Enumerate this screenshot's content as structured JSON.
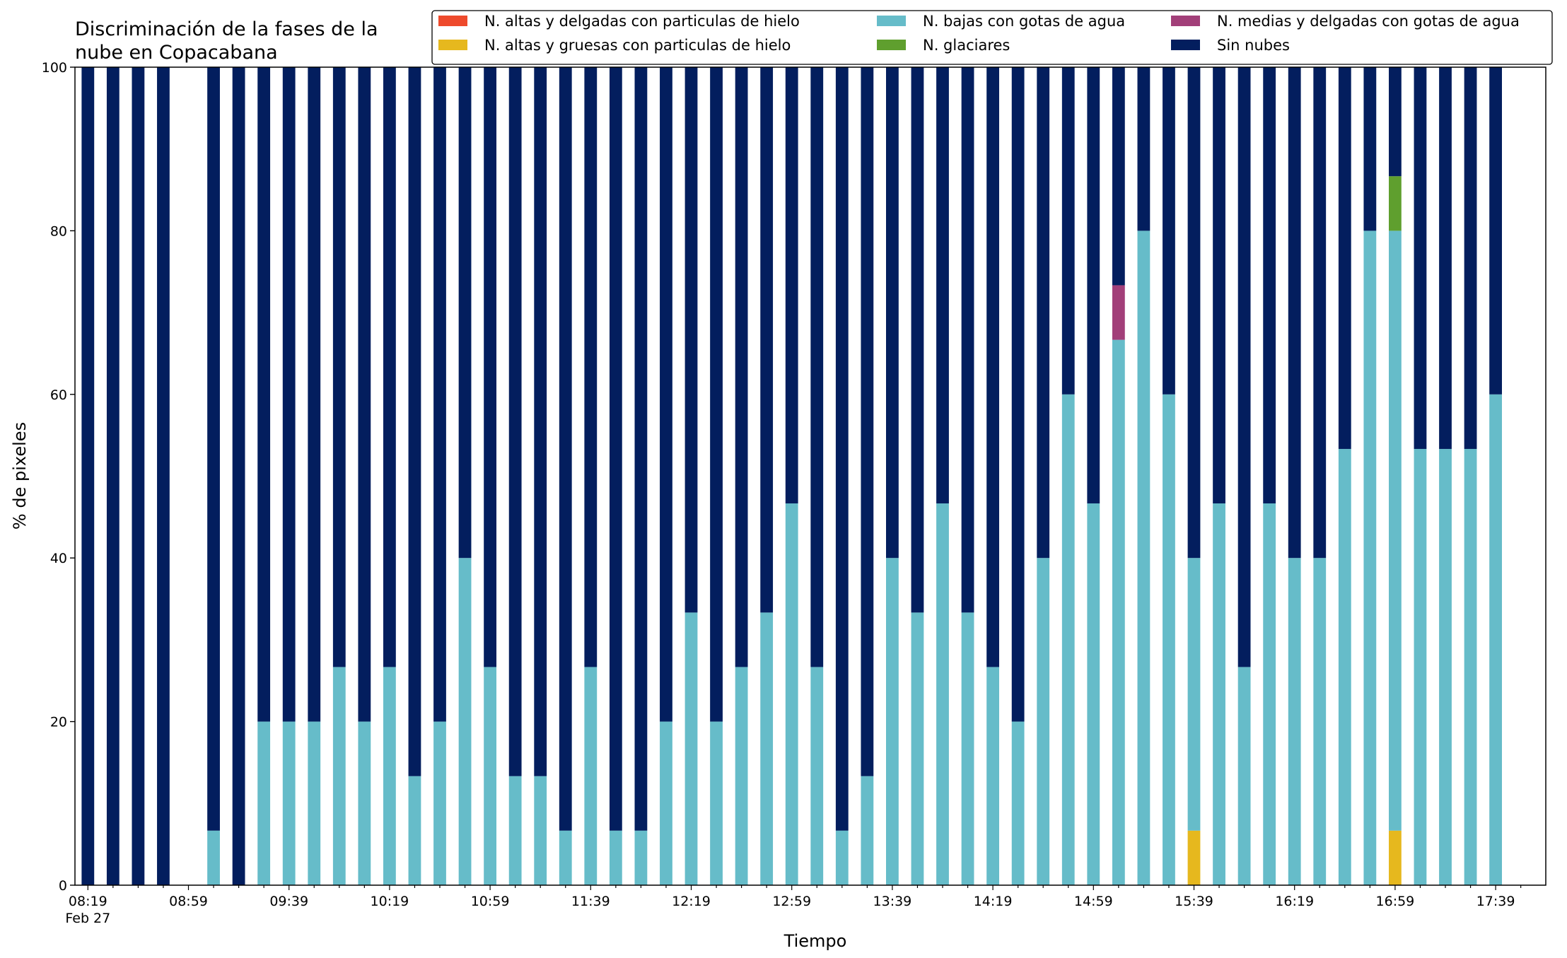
{
  "chart_data": {
    "type": "bar",
    "stacked": true,
    "title_line1": "Discriminación de la fases de la",
    "title_line2": "nube en Copacabana",
    "xlabel": "Tiempo",
    "ylabel": "% de pixeles",
    "ylim": [
      0,
      100
    ],
    "yticks": [
      "0",
      "20",
      "40",
      "60",
      "80",
      "100"
    ],
    "grid": false,
    "legend_position": "top-right",
    "x": [
      "08:19",
      "08:29",
      "08:39",
      "08:49",
      "08:59",
      "09:09",
      "09:19",
      "09:29",
      "09:39",
      "09:49",
      "09:59",
      "10:09",
      "10:19",
      "10:29",
      "10:39",
      "10:49",
      "10:59",
      "11:09",
      "11:19",
      "11:29",
      "11:39",
      "11:49",
      "11:59",
      "12:09",
      "12:19",
      "12:29",
      "12:39",
      "12:49",
      "12:59",
      "13:09",
      "13:19",
      "13:29",
      "13:39",
      "13:49",
      "13:59",
      "14:09",
      "14:19",
      "14:29",
      "14:39",
      "14:49",
      "14:59",
      "15:09",
      "15:19",
      "15:29",
      "15:39",
      "15:49",
      "15:59",
      "16:09",
      "16:19",
      "16:29",
      "16:39",
      "16:49",
      "16:59",
      "17:09",
      "17:19",
      "17:29",
      "17:39",
      "17:49"
    ],
    "xtick_labels": [
      {
        "index": 0,
        "label": "08:19",
        "sublabel": "Feb 27"
      },
      {
        "index": 4,
        "label": "08:59"
      },
      {
        "index": 8,
        "label": "09:39"
      },
      {
        "index": 12,
        "label": "10:19"
      },
      {
        "index": 16,
        "label": "10:59"
      },
      {
        "index": 20,
        "label": "11:39"
      },
      {
        "index": 24,
        "label": "12:19"
      },
      {
        "index": 28,
        "label": "12:59"
      },
      {
        "index": 32,
        "label": "13:39"
      },
      {
        "index": 36,
        "label": "14:19"
      },
      {
        "index": 40,
        "label": "14:59"
      },
      {
        "index": 44,
        "label": "15:39"
      },
      {
        "index": 48,
        "label": "16:19"
      },
      {
        "index": 52,
        "label": "16:59"
      },
      {
        "index": 56,
        "label": "17:39"
      }
    ],
    "series": [
      {
        "name": "N. altas y delgadas con particulas de hielo",
        "color": "#ee4a2c",
        "values": [
          0,
          0,
          0,
          0,
          0,
          0,
          0,
          0,
          0,
          0,
          0,
          0,
          0,
          0,
          0,
          0,
          0,
          0,
          0,
          0,
          0,
          0,
          0,
          0,
          0,
          0,
          0,
          0,
          0,
          0,
          0,
          0,
          0,
          0,
          0,
          0,
          0,
          0,
          0,
          0,
          0,
          0,
          0,
          0,
          0,
          0,
          0,
          0,
          0,
          0,
          0,
          0,
          0,
          0,
          0,
          0,
          0,
          0
        ]
      },
      {
        "name": "N. altas y gruesas con particulas de hielo",
        "color": "#e6b81e",
        "values": [
          0,
          0,
          0,
          0,
          0,
          0,
          0,
          0,
          0,
          0,
          0,
          0,
          0,
          0,
          0,
          0,
          0,
          0,
          0,
          0,
          0,
          0,
          0,
          0,
          0,
          0,
          0,
          0,
          0,
          0,
          0,
          0,
          0,
          0,
          0,
          0,
          0,
          0,
          0,
          0,
          0,
          0,
          0,
          0,
          6.67,
          0,
          0,
          0,
          0,
          0,
          0,
          0,
          6.67,
          0,
          0,
          0,
          0,
          0
        ]
      },
      {
        "name": "N. bajas con gotas de agua",
        "color": "#66bcc9",
        "values": [
          0,
          0,
          0,
          0,
          0,
          6.67,
          0,
          20,
          20,
          20,
          26.67,
          20,
          26.67,
          13.33,
          20,
          40,
          26.67,
          13.33,
          13.33,
          6.67,
          26.67,
          6.67,
          6.67,
          20,
          33.33,
          20,
          26.67,
          33.33,
          46.67,
          26.67,
          6.67,
          13.33,
          40,
          33.33,
          46.67,
          33.33,
          26.67,
          20,
          40,
          60,
          46.67,
          66.67,
          80,
          60,
          33.33,
          46.67,
          26.67,
          46.67,
          40,
          40,
          53.33,
          80,
          73.33,
          53.33,
          53.33,
          53.33,
          60,
          0
        ]
      },
      {
        "name": "N. glaciares",
        "color": "#5f9f2e",
        "values": [
          0,
          0,
          0,
          0,
          0,
          0,
          0,
          0,
          0,
          0,
          0,
          0,
          0,
          0,
          0,
          0,
          0,
          0,
          0,
          0,
          0,
          0,
          0,
          0,
          0,
          0,
          0,
          0,
          0,
          0,
          0,
          0,
          0,
          0,
          0,
          0,
          0,
          0,
          0,
          0,
          0,
          0,
          0,
          0,
          0,
          0,
          0,
          0,
          0,
          0,
          0,
          0,
          6.67,
          0,
          0,
          0,
          0,
          0
        ]
      },
      {
        "name": "N. medias y delgadas con gotas de agua",
        "color": "#a23f79",
        "values": [
          0,
          0,
          0,
          0,
          0,
          0,
          0,
          0,
          0,
          0,
          0,
          0,
          0,
          0,
          0,
          0,
          0,
          0,
          0,
          0,
          0,
          0,
          0,
          0,
          0,
          0,
          0,
          0,
          0,
          0,
          0,
          0,
          0,
          0,
          0,
          0,
          0,
          0,
          0,
          0,
          0,
          6.67,
          0,
          0,
          0,
          0,
          0,
          0,
          0,
          0,
          0,
          0,
          0,
          0,
          0,
          0,
          0,
          0
        ]
      },
      {
        "name": "Sin nubes",
        "color": "#031e5e",
        "values": [
          100,
          100,
          100,
          100,
          0,
          93.33,
          100,
          80,
          80,
          80,
          73.33,
          80,
          73.33,
          86.67,
          80,
          60,
          73.33,
          86.67,
          86.67,
          93.33,
          73.33,
          93.33,
          93.33,
          80,
          66.67,
          80,
          73.33,
          66.67,
          53.33,
          73.33,
          93.33,
          86.67,
          60,
          66.67,
          53.33,
          66.67,
          73.33,
          80,
          60,
          40,
          53.33,
          26.67,
          20,
          40,
          60,
          53.33,
          73.33,
          53.33,
          60,
          60,
          46.67,
          20,
          13.33,
          46.67,
          46.67,
          46.67,
          40,
          0
        ]
      }
    ]
  }
}
